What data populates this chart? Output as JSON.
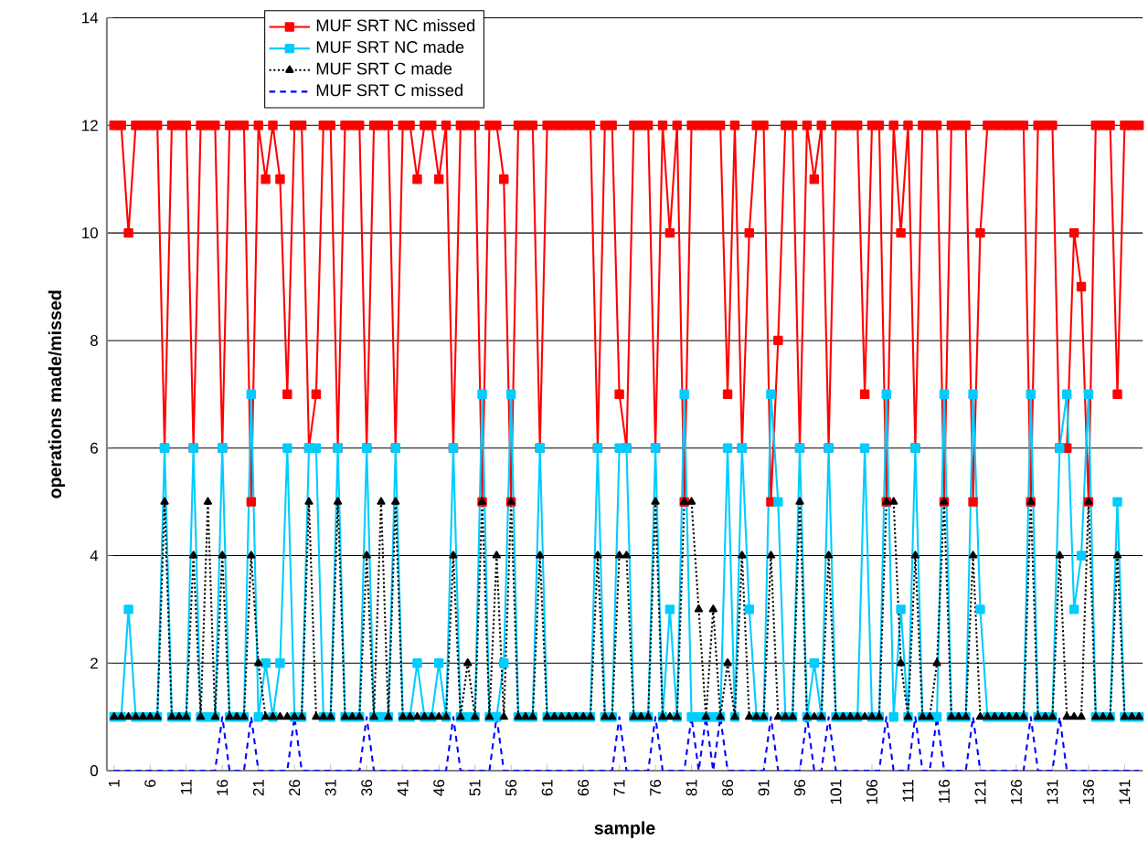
{
  "chart_data": {
    "type": "line",
    "xlabel": "sample",
    "ylabel": "operations made/missed",
    "categories": [
      "1",
      null,
      null,
      null,
      null,
      "6",
      null,
      null,
      null,
      null,
      "11",
      null,
      null,
      null,
      null,
      "16",
      null,
      null,
      null,
      null,
      "21",
      null,
      null,
      null,
      null,
      "26",
      null,
      null,
      null,
      null,
      "31",
      null,
      null,
      null,
      null,
      "36",
      null,
      null,
      null,
      null,
      "41",
      null,
      null,
      null,
      null,
      "46",
      null,
      null,
      null,
      null,
      "51",
      null,
      null,
      null,
      null,
      "56",
      null,
      null,
      null,
      null,
      "61",
      null,
      null,
      null,
      null,
      "66",
      null,
      null,
      null,
      null,
      "71",
      null,
      null,
      null,
      null,
      "76",
      null,
      null,
      null,
      null,
      "81",
      null,
      null,
      null,
      null,
      "86",
      null,
      null,
      null,
      null,
      "91",
      null,
      null,
      null,
      null,
      "96",
      null,
      null,
      null,
      null,
      "101",
      null,
      null,
      null,
      null,
      "106",
      null,
      null,
      null,
      null,
      "111",
      null,
      null,
      null,
      null,
      "116",
      null,
      null,
      null,
      null,
      "121",
      null,
      null,
      null,
      null,
      "126",
      null,
      null,
      null,
      null,
      "131",
      null,
      null,
      null,
      null,
      "136",
      null,
      null,
      null,
      null,
      "141",
      null,
      null
    ],
    "series": [
      {
        "name": "MUF SRT NC missed",
        "color": "#ff0000",
        "marker": "square",
        "line_style": "solid",
        "values": [
          12,
          12,
          10,
          12,
          12,
          12,
          12,
          6,
          12,
          12,
          12,
          6,
          12,
          12,
          12,
          6,
          12,
          12,
          12,
          5,
          12,
          11,
          12,
          11,
          7,
          12,
          12,
          6,
          7,
          12,
          12,
          6,
          12,
          12,
          12,
          6,
          12,
          12,
          12,
          6,
          12,
          12,
          11,
          12,
          12,
          11,
          12,
          6,
          12,
          12,
          12,
          5,
          12,
          12,
          11,
          5,
          12,
          12,
          12,
          6,
          12,
          12,
          12,
          12,
          12,
          12,
          12,
          6,
          12,
          12,
          7,
          6,
          12,
          12,
          12,
          6,
          12,
          10,
          12,
          5,
          12,
          12,
          12,
          12,
          12,
          7,
          12,
          6,
          10,
          12,
          12,
          5,
          8,
          12,
          12,
          6,
          12,
          11,
          12,
          6,
          12,
          12,
          12,
          12,
          7,
          12,
          12,
          5,
          12,
          10,
          12,
          6,
          12,
          12,
          12,
          5,
          12,
          12,
          12,
          5,
          10,
          12,
          12,
          12,
          12,
          12,
          12,
          5,
          12,
          12,
          12,
          6,
          6,
          10,
          9,
          5,
          12,
          12,
          12,
          7,
          12,
          12,
          12
        ]
      },
      {
        "name": "MUF SRT NC made",
        "color": "#00ccff",
        "marker": "square",
        "line_style": "solid",
        "values": [
          1,
          1,
          3,
          1,
          1,
          1,
          1,
          6,
          1,
          1,
          1,
          6,
          1,
          1,
          1,
          6,
          1,
          1,
          1,
          7,
          1,
          2,
          1,
          2,
          6,
          1,
          1,
          6,
          6,
          1,
          1,
          6,
          1,
          1,
          1,
          6,
          1,
          1,
          1,
          6,
          1,
          1,
          2,
          1,
          1,
          2,
          1,
          6,
          1,
          1,
          1,
          7,
          1,
          1,
          2,
          7,
          1,
          1,
          1,
          6,
          1,
          1,
          1,
          1,
          1,
          1,
          1,
          6,
          1,
          1,
          6,
          6,
          1,
          1,
          1,
          6,
          1,
          3,
          1,
          7,
          1,
          1,
          1,
          1,
          1,
          6,
          1,
          6,
          3,
          1,
          1,
          7,
          5,
          1,
          1,
          6,
          1,
          2,
          1,
          6,
          1,
          1,
          1,
          1,
          6,
          1,
          1,
          7,
          1,
          3,
          1,
          6,
          1,
          1,
          1,
          7,
          1,
          1,
          1,
          7,
          3,
          1,
          1,
          1,
          1,
          1,
          1,
          7,
          1,
          1,
          1,
          6,
          7,
          3,
          4,
          7,
          1,
          1,
          1,
          5,
          1,
          1,
          1
        ]
      },
      {
        "name": "MUF SRT C made",
        "color": "#000000",
        "marker": "triangle",
        "line_style": "dotted",
        "values": [
          1,
          1,
          1,
          1,
          1,
          1,
          1,
          5,
          1,
          1,
          1,
          4,
          1,
          5,
          1,
          4,
          1,
          1,
          1,
          4,
          2,
          1,
          1,
          1,
          1,
          1,
          1,
          5,
          1,
          1,
          1,
          5,
          1,
          1,
          1,
          4,
          1,
          5,
          1,
          5,
          1,
          1,
          1,
          1,
          1,
          1,
          1,
          4,
          1,
          2,
          1,
          5,
          1,
          4,
          1,
          5,
          1,
          1,
          1,
          4,
          1,
          1,
          1,
          1,
          1,
          1,
          1,
          4,
          1,
          1,
          4,
          4,
          1,
          1,
          1,
          5,
          1,
          1,
          1,
          5,
          5,
          3,
          1,
          3,
          1,
          2,
          1,
          4,
          1,
          1,
          1,
          4,
          1,
          1,
          1,
          5,
          1,
          1,
          1,
          4,
          1,
          1,
          1,
          1,
          1,
          1,
          1,
          5,
          5,
          2,
          1,
          4,
          1,
          1,
          2,
          5,
          1,
          1,
          1,
          4,
          1,
          1,
          1,
          1,
          1,
          1,
          1,
          5,
          1,
          1,
          1,
          4,
          1,
          1,
          1,
          5,
          1,
          1,
          1,
          4,
          1,
          1,
          1
        ]
      },
      {
        "name": "MUF SRT C missed",
        "color": "#0000ff",
        "marker": "none",
        "line_style": "dashed",
        "values": [
          0,
          0,
          0,
          0,
          0,
          0,
          0,
          0,
          0,
          0,
          0,
          0,
          0,
          0,
          0,
          1,
          0,
          0,
          0,
          1,
          0,
          0,
          0,
          0,
          0,
          1,
          0,
          0,
          0,
          0,
          0,
          0,
          0,
          0,
          0,
          1,
          0,
          0,
          0,
          0,
          0,
          0,
          0,
          0,
          0,
          0,
          0,
          1,
          0,
          0,
          0,
          0,
          0,
          1,
          0,
          0,
          0,
          0,
          0,
          0,
          0,
          0,
          0,
          0,
          0,
          0,
          0,
          0,
          0,
          0,
          1,
          0,
          0,
          0,
          0,
          1,
          0,
          0,
          0,
          0,
          1,
          0,
          1,
          0,
          1,
          0,
          0,
          0,
          0,
          0,
          0,
          1,
          0,
          0,
          0,
          0,
          1,
          0,
          0,
          1,
          0,
          0,
          0,
          0,
          0,
          0,
          0,
          1,
          0,
          0,
          0,
          1,
          0,
          0,
          1,
          0,
          0,
          0,
          0,
          1,
          0,
          0,
          0,
          0,
          0,
          0,
          0,
          1,
          0,
          0,
          0,
          1,
          0,
          0,
          0,
          0,
          0,
          0,
          0,
          0,
          0,
          0,
          0
        ]
      }
    ],
    "ylim": [
      0,
      14
    ],
    "yticks": [
      0,
      2,
      4,
      6,
      8,
      10,
      12,
      14
    ],
    "grid": "y",
    "legend": "top"
  }
}
